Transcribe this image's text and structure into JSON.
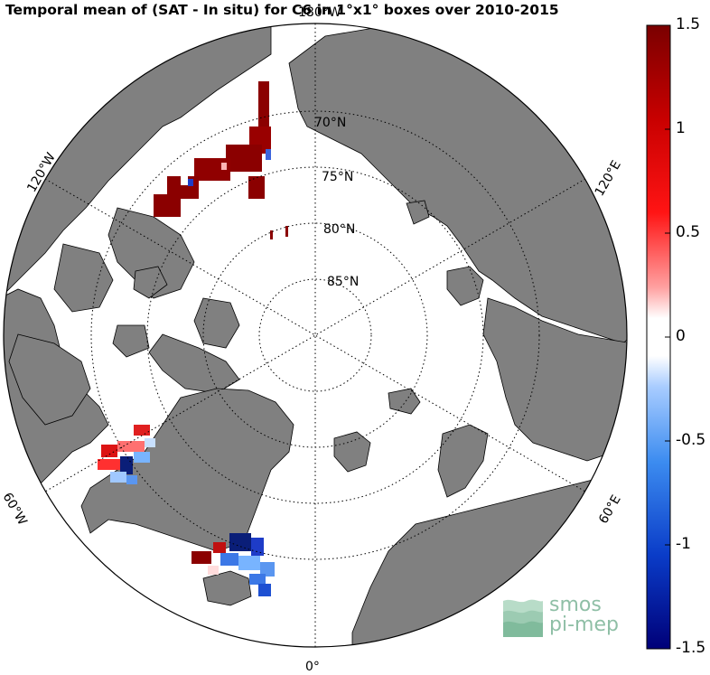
{
  "title": "Temporal mean of (SAT - In situ) for C6 in 1°x1° boxes over 2010-2015",
  "map": {
    "projection": "north polar stereographic",
    "land_color": "#808080",
    "ocean_color": "#ffffff",
    "lat_labels": [
      "70°N",
      "75°N",
      "80°N",
      "85°N"
    ],
    "lon_labels": {
      "top": "180°W",
      "upper_left": "120°W",
      "upper_right": "120°E",
      "left": "60°W",
      "right": "60°E",
      "bottom": "0°"
    }
  },
  "colorbar": {
    "min": -1.5,
    "max": 1.5,
    "tick_labels": [
      "1.5",
      "1",
      "0.5",
      "0",
      "-0.5",
      "-1",
      "-1.5"
    ],
    "colormap": "blue-white-red"
  },
  "logo": {
    "line1": "smos",
    "line2": "pi-mep",
    "color": "#8fbfa6"
  }
}
